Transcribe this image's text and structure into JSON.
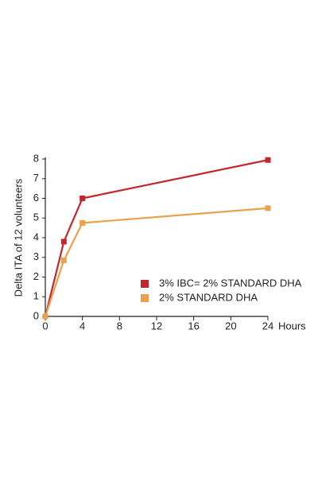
{
  "chart_data": {
    "type": "line",
    "y_label": "Delta ITA of 12 volunteers",
    "x_label": "Hours",
    "x": [
      0,
      2,
      4,
      24
    ],
    "series": [
      {
        "name": "3% IBC= 2% STANDARD DHA",
        "color": "#c1272d",
        "values": [
          0,
          3.8,
          6.0,
          7.95
        ]
      },
      {
        "name": "2% STANDARD DHA",
        "color": "#eba04e",
        "values": [
          0,
          2.85,
          4.75,
          5.5
        ]
      }
    ],
    "xlim": [
      0,
      24
    ],
    "xticks": [
      0,
      4,
      8,
      12,
      16,
      20,
      24
    ],
    "ylim": [
      0,
      8
    ],
    "yticks": [
      0,
      1,
      2,
      3,
      4,
      5,
      6,
      7,
      8
    ],
    "grid": false
  }
}
